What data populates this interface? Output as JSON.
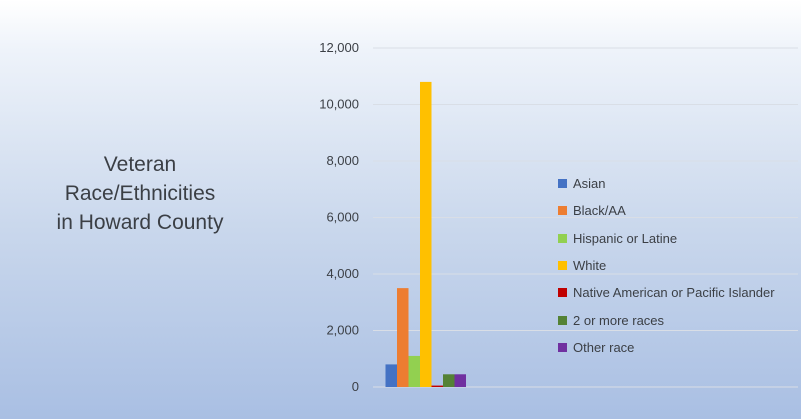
{
  "chart_data": {
    "type": "bar",
    "title_lines": [
      "Veteran",
      "Race/Ethnicities",
      "in Howard County"
    ],
    "xlabel": "",
    "ylabel": "",
    "ylim": [
      0,
      12000
    ],
    "y_ticks": [
      "0",
      "2,000",
      "4,000",
      "6,000",
      "8,000",
      "10,000",
      "12,000"
    ],
    "y_tick_values": [
      0,
      2000,
      4000,
      6000,
      8000,
      10000,
      12000
    ],
    "grid": true,
    "legend_position": "right",
    "series": [
      {
        "name": "Asian",
        "value": 800,
        "color": "#4472c4"
      },
      {
        "name": "Black/AA",
        "value": 3500,
        "color": "#ed7d31"
      },
      {
        "name": "Hispanic or Latine",
        "value": 1100,
        "color": "#92d050"
      },
      {
        "name": "White",
        "value": 10800,
        "color": "#ffc000"
      },
      {
        "name": "Native American or Pacific Islander",
        "value": 50,
        "color": "#c00000"
      },
      {
        "name": "2 or more races",
        "value": 450,
        "color": "#548235"
      },
      {
        "name": "Other race",
        "value": 450,
        "color": "#7030a0"
      }
    ]
  }
}
